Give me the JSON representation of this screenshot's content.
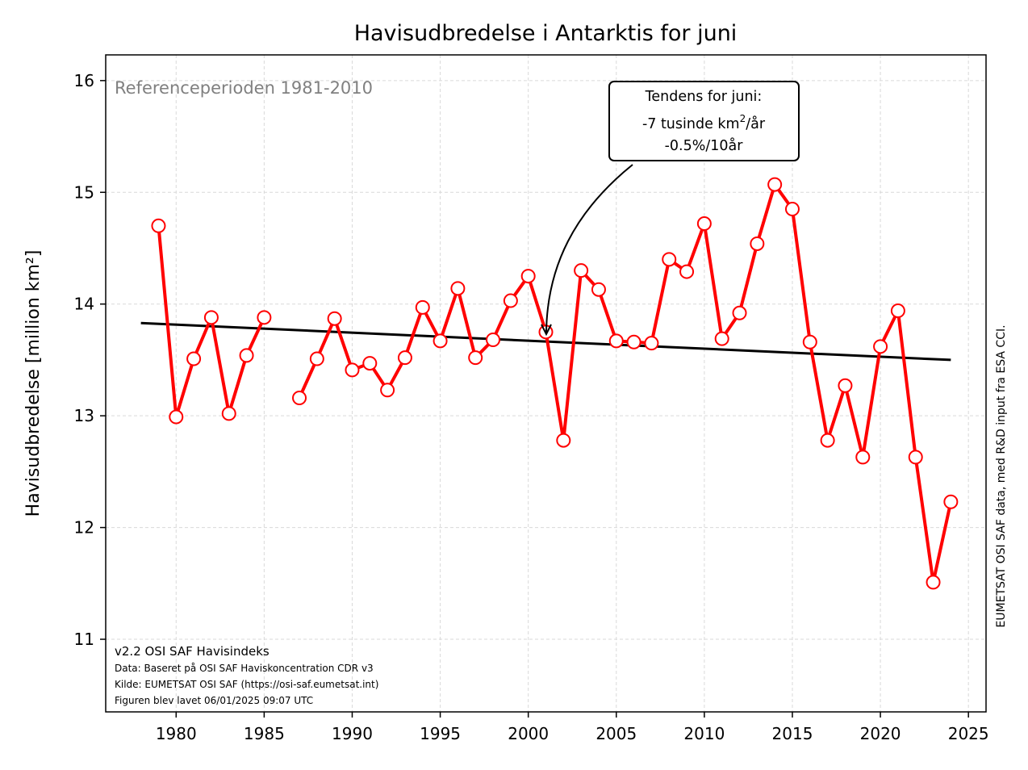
{
  "chart_data": {
    "type": "line",
    "title": "Havisudbredelse i Antarktis for juni",
    "xlabel": "",
    "ylabel": "Havisudbredelse [million km²]",
    "xlim": [
      1976,
      2026
    ],
    "ylim": [
      10.35,
      16.23
    ],
    "xticks": [
      1980,
      1985,
      1990,
      1995,
      2000,
      2005,
      2010,
      2015,
      2020,
      2025
    ],
    "yticks": [
      11,
      12,
      13,
      14,
      15,
      16
    ],
    "grid": true,
    "colors": {
      "series": "#ff0000",
      "trend": "#000000",
      "reference_text": "#808080"
    },
    "series": [
      {
        "x": [
          1979,
          1980,
          1981,
          1982,
          1983,
          1984,
          1985
        ],
        "y": [
          14.7,
          12.99,
          13.51,
          13.88,
          13.02,
          13.54,
          13.88
        ]
      },
      {
        "x": [
          1987,
          1988,
          1989,
          1990,
          1991,
          1992,
          1993,
          1994,
          1995,
          1996,
          1997,
          1998,
          1999,
          2000,
          2001,
          2002,
          2003,
          2004,
          2005,
          2006,
          2007,
          2008,
          2009,
          2010,
          2011,
          2012,
          2013,
          2014,
          2015,
          2016,
          2017,
          2018,
          2019,
          2020,
          2021,
          2022,
          2023,
          2024
        ],
        "y": [
          13.16,
          13.51,
          13.87,
          13.41,
          13.47,
          13.23,
          13.52,
          13.97,
          13.67,
          14.14,
          13.52,
          13.68,
          14.03,
          14.25,
          13.75,
          12.78,
          14.3,
          14.13,
          13.67,
          13.66,
          13.65,
          14.4,
          14.29,
          14.72,
          13.69,
          13.92,
          14.54,
          15.07,
          14.85,
          13.66,
          12.78,
          13.27,
          12.63,
          13.62,
          13.94,
          12.63,
          11.51,
          12.23
        ]
      }
    ],
    "trend": {
      "x": [
        1978,
        2024
      ],
      "y": [
        13.83,
        13.5
      ]
    },
    "annotations": {
      "reference": "Referenceperioden 1981-2010",
      "trend_box": {
        "line1": "Tendens for juni:",
        "line2_prefix": "-7 tusinde km",
        "line2_sup": "2",
        "line2_suffix": "/år",
        "line3": "-0.5%/10år",
        "arrow_target": {
          "x": 2001,
          "y": 13.75
        }
      },
      "footer": {
        "version": "v2.2 OSI SAF Havisindeks",
        "data": "Data: Baseret på OSI SAF Haviskoncentration CDR v3",
        "source": "Kilde: EUMETSAT OSI SAF (https://osi-saf.eumetsat.int)",
        "created": "Figuren blev lavet 06/01/2025 09:07 UTC"
      },
      "side_credit": "EUMETSAT OSI SAF data, med R&D input fra ESA CCI."
    }
  }
}
